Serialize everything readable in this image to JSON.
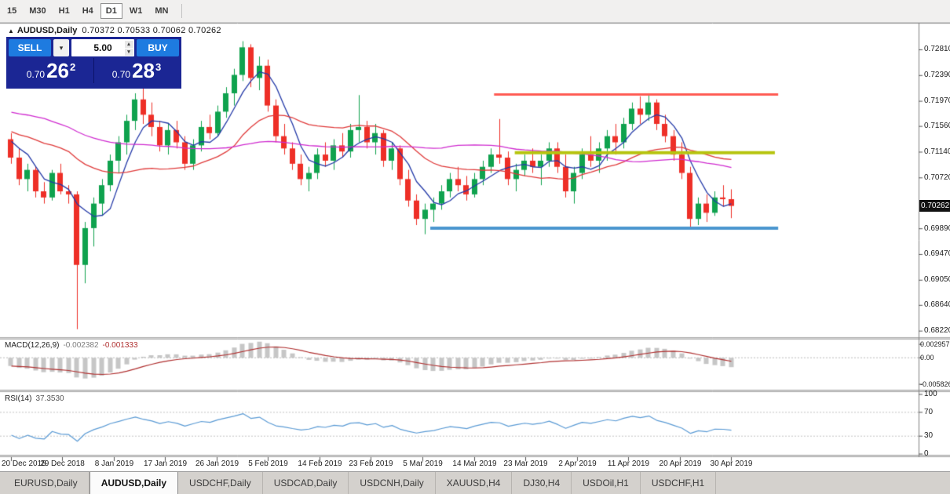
{
  "toolbar": {
    "timeframes": [
      {
        "label": "15",
        "selected": false
      },
      {
        "label": "M30",
        "selected": false
      },
      {
        "label": "H1",
        "selected": false
      },
      {
        "label": "H4",
        "selected": false
      },
      {
        "label": "D1",
        "selected": true
      },
      {
        "label": "W1",
        "selected": false
      },
      {
        "label": "MN",
        "selected": false
      }
    ]
  },
  "chart_header": {
    "collapse_icon": "▲",
    "symbol": "AUDUSD,Daily",
    "ohlc": "0.70372 0.70533 0.70062 0.70262"
  },
  "trade_panel": {
    "sell_label": "SELL",
    "buy_label": "BUY",
    "lot_value": "5.00",
    "dropdown_icon": "▾",
    "spin_up_icon": "▴",
    "spin_down_icon": "▾",
    "sell_price": {
      "prefix": "0.70",
      "big": "26",
      "sup": "2"
    },
    "buy_price": {
      "prefix": "0.70",
      "big": "28",
      "sup": "3"
    }
  },
  "indicator_labels": {
    "macd_name": "MACD(12,26,9)",
    "macd_value_main": "-0.002382",
    "macd_value_signal": "-0.001333",
    "rsi_name": "RSI(14)",
    "rsi_value": "37.3530"
  },
  "tabs": [
    {
      "label": "EURUSD,Daily",
      "selected": false
    },
    {
      "label": "AUDUSD,Daily",
      "selected": true
    },
    {
      "label": "USDCHF,Daily",
      "selected": false
    },
    {
      "label": "USDCAD,Daily",
      "selected": false
    },
    {
      "label": "USDCNH,Daily",
      "selected": false
    },
    {
      "label": "XAUUSD,H4",
      "selected": false
    },
    {
      "label": "DJ30,H4",
      "selected": false
    },
    {
      "label": "USDOil,H1",
      "selected": false
    },
    {
      "label": "USDCHF,H1",
      "selected": false
    }
  ],
  "colors": {
    "bull": "#0fa24e",
    "bear": "#ee2f27",
    "ma_fast": "#2339a8",
    "ma_mid": "#e03a3a",
    "ma_slow": "#d02bd0",
    "macd_histogram": "#c6c6c6",
    "macd_signal": "#b03030",
    "rsi_line": "#5b9bd5",
    "line_red": "#ff5a52",
    "line_yellow": "#b6c40e",
    "line_blue": "#4a96cf",
    "badge_bg": "#111111",
    "panel_navy": "#1b2694",
    "button_blue": "#1e7be0"
  },
  "chart_data": {
    "type": "candlestick",
    "symbol": "AUDUSD",
    "timeframe": "Daily",
    "title": "AUDUSD,Daily",
    "last_ohlc": {
      "open": 0.70372,
      "high": 0.70533,
      "low": 0.70062,
      "close": 0.70262
    },
    "visible_price_range": [
      0.6812,
      0.732
    ],
    "price_axis_labels": [
      "0.72810",
      "0.72390",
      "0.71970",
      "0.71560",
      "0.71140",
      "0.70720",
      "0.69890",
      "0.69470",
      "0.69050",
      "0.68640",
      "0.68220"
    ],
    "current_price_label": "0.70262",
    "date_axis_labels": [
      "20 Dec 2018",
      "29 Dec 2018",
      "8 Jan 2019",
      "17 Jan 2019",
      "26 Jan 2019",
      "5 Feb 2019",
      "14 Feb 2019",
      "23 Feb 2019",
      "5 Mar 2019",
      "14 Mar 2019",
      "23 Mar 2019",
      "2 Apr 2019",
      "11 Apr 2019",
      "20 Apr 2019",
      "30 Apr 2019"
    ],
    "candles_ohlc": [
      [
        0.7135,
        0.7145,
        0.7095,
        0.7105
      ],
      [
        0.7105,
        0.712,
        0.706,
        0.707
      ],
      [
        0.707,
        0.7095,
        0.705,
        0.7085
      ],
      [
        0.7085,
        0.709,
        0.704,
        0.705
      ],
      [
        0.705,
        0.7065,
        0.703,
        0.704
      ],
      [
        0.704,
        0.7085,
        0.7035,
        0.708
      ],
      [
        0.708,
        0.7095,
        0.7045,
        0.705
      ],
      [
        0.705,
        0.706,
        0.703,
        0.7045
      ],
      [
        0.7045,
        0.705,
        0.6825,
        0.693
      ],
      [
        0.693,
        0.7,
        0.69,
        0.699
      ],
      [
        0.699,
        0.704,
        0.696,
        0.703
      ],
      [
        0.703,
        0.707,
        0.701,
        0.706
      ],
      [
        0.706,
        0.711,
        0.705,
        0.71
      ],
      [
        0.71,
        0.714,
        0.708,
        0.713
      ],
      [
        0.713,
        0.7175,
        0.711,
        0.7165
      ],
      [
        0.7165,
        0.721,
        0.715,
        0.72
      ],
      [
        0.72,
        0.722,
        0.716,
        0.7175
      ],
      [
        0.7175,
        0.7195,
        0.714,
        0.7155
      ],
      [
        0.7155,
        0.7165,
        0.7115,
        0.7125
      ],
      [
        0.7125,
        0.716,
        0.711,
        0.715
      ],
      [
        0.715,
        0.7165,
        0.712,
        0.713
      ],
      [
        0.713,
        0.714,
        0.7085,
        0.7095
      ],
      [
        0.7095,
        0.7135,
        0.7085,
        0.7125
      ],
      [
        0.7125,
        0.7165,
        0.7115,
        0.7155
      ],
      [
        0.7155,
        0.7175,
        0.7135,
        0.7145
      ],
      [
        0.7145,
        0.719,
        0.714,
        0.718
      ],
      [
        0.718,
        0.722,
        0.717,
        0.721
      ],
      [
        0.721,
        0.725,
        0.719,
        0.724
      ],
      [
        0.724,
        0.7295,
        0.723,
        0.7285
      ],
      [
        0.7285,
        0.729,
        0.722,
        0.7235
      ],
      [
        0.7235,
        0.727,
        0.7215,
        0.7255
      ],
      [
        0.7255,
        0.7265,
        0.718,
        0.719
      ],
      [
        0.719,
        0.72,
        0.713,
        0.714
      ],
      [
        0.714,
        0.716,
        0.711,
        0.712
      ],
      [
        0.712,
        0.713,
        0.7085,
        0.7095
      ],
      [
        0.7095,
        0.711,
        0.706,
        0.707
      ],
      [
        0.707,
        0.709,
        0.705,
        0.708
      ],
      [
        0.708,
        0.712,
        0.707,
        0.711
      ],
      [
        0.711,
        0.713,
        0.709,
        0.71
      ],
      [
        0.71,
        0.7135,
        0.7085,
        0.7125
      ],
      [
        0.7125,
        0.7145,
        0.7105,
        0.7115
      ],
      [
        0.7115,
        0.716,
        0.7105,
        0.715
      ],
      [
        0.715,
        0.7207,
        0.713,
        0.7155
      ],
      [
        0.7155,
        0.7165,
        0.712,
        0.713
      ],
      [
        0.713,
        0.716,
        0.711,
        0.7145
      ],
      [
        0.7145,
        0.715,
        0.709,
        0.71
      ],
      [
        0.71,
        0.713,
        0.7085,
        0.712
      ],
      [
        0.712,
        0.7125,
        0.706,
        0.707
      ],
      [
        0.707,
        0.7085,
        0.7025,
        0.7035
      ],
      [
        0.7035,
        0.7045,
        0.6995,
        0.7005
      ],
      [
        0.7005,
        0.703,
        0.698,
        0.702
      ],
      [
        0.702,
        0.704,
        0.7,
        0.703
      ],
      [
        0.703,
        0.706,
        0.702,
        0.705
      ],
      [
        0.705,
        0.708,
        0.704,
        0.707
      ],
      [
        0.707,
        0.709,
        0.705,
        0.706
      ],
      [
        0.706,
        0.7075,
        0.7035,
        0.7045
      ],
      [
        0.7045,
        0.708,
        0.704,
        0.707
      ],
      [
        0.707,
        0.71,
        0.706,
        0.709
      ],
      [
        0.709,
        0.712,
        0.708,
        0.711
      ],
      [
        0.711,
        0.7168,
        0.7095,
        0.7105
      ],
      [
        0.7105,
        0.7115,
        0.706,
        0.707
      ],
      [
        0.707,
        0.7095,
        0.705,
        0.7085
      ],
      [
        0.7085,
        0.711,
        0.7075,
        0.71
      ],
      [
        0.71,
        0.712,
        0.708,
        0.709
      ],
      [
        0.709,
        0.711,
        0.706,
        0.71
      ],
      [
        0.71,
        0.713,
        0.709,
        0.712
      ],
      [
        0.712,
        0.713,
        0.708,
        0.709
      ],
      [
        0.709,
        0.711,
        0.704,
        0.705
      ],
      [
        0.705,
        0.709,
        0.703,
        0.708
      ],
      [
        0.708,
        0.712,
        0.707,
        0.711
      ],
      [
        0.711,
        0.714,
        0.709,
        0.71
      ],
      [
        0.71,
        0.713,
        0.708,
        0.712
      ],
      [
        0.712,
        0.715,
        0.71,
        0.714
      ],
      [
        0.714,
        0.716,
        0.711,
        0.713
      ],
      [
        0.713,
        0.717,
        0.712,
        0.716
      ],
      [
        0.716,
        0.7195,
        0.715,
        0.7185
      ],
      [
        0.7185,
        0.7205,
        0.716,
        0.7175
      ],
      [
        0.7175,
        0.721,
        0.7165,
        0.7195
      ],
      [
        0.7195,
        0.72,
        0.715,
        0.716
      ],
      [
        0.716,
        0.7175,
        0.713,
        0.714
      ],
      [
        0.714,
        0.715,
        0.71,
        0.711
      ],
      [
        0.711,
        0.713,
        0.707,
        0.708
      ],
      [
        0.708,
        0.709,
        0.699,
        0.7005
      ],
      [
        0.7005,
        0.704,
        0.6995,
        0.703
      ],
      [
        0.703,
        0.7045,
        0.7,
        0.7015
      ],
      [
        0.7015,
        0.705,
        0.701,
        0.704
      ],
      [
        0.704,
        0.706,
        0.7025,
        0.70372
      ],
      [
        0.70372,
        0.70533,
        0.70062,
        0.70262
      ]
    ],
    "indicator_warmup_closes": [
      0.7285,
      0.727,
      0.7255,
      0.7262,
      0.7248,
      0.7235,
      0.7242,
      0.7228,
      0.7215,
      0.7222,
      0.7208,
      0.7195,
      0.7202,
      0.7188,
      0.7175,
      0.7182,
      0.7168,
      0.7155,
      0.7162,
      0.7148,
      0.7156,
      0.717,
      0.7158,
      0.7145,
      0.7152,
      0.7138,
      0.7146,
      0.716,
      0.7172,
      0.7165,
      0.7152,
      0.7158,
      0.7144,
      0.715,
      0.7136,
      0.7142,
      0.7128,
      0.7135,
      0.7148,
      0.7142
    ],
    "moving_averages": [
      {
        "period": 5,
        "color": "#2339a8"
      },
      {
        "period": 20,
        "color": "#e03a3a"
      },
      {
        "period": 45,
        "color": "#d02bd0"
      }
    ],
    "horizontal_lines": [
      {
        "price": 0.7208,
        "color": "#ff5a52",
        "width": 3,
        "from_index": 58.7,
        "to_index": 93
      },
      {
        "price": 0.7113,
        "color": "#b6c40e",
        "width": 4,
        "from_index": 61.2,
        "to_index": 92.6
      },
      {
        "price": 0.699,
        "color": "#4a96cf",
        "width": 4,
        "from_index": 51,
        "to_index": 93
      }
    ],
    "macd": {
      "label": "MACD(12,26,9)",
      "fast": 12,
      "slow": 26,
      "signal": 9,
      "current_main": -0.002382,
      "current_signal": -0.001333,
      "axis_labels": [
        "0.002957",
        "0.00",
        "-0.005826"
      ],
      "range": [
        -0.0065,
        0.0035
      ]
    },
    "rsi": {
      "label": "RSI(14)",
      "period": 14,
      "current": 37.353,
      "axis_labels": [
        "100",
        "70",
        "30",
        "0"
      ],
      "levels": [
        70,
        30
      ],
      "range": [
        0,
        100
      ]
    }
  }
}
